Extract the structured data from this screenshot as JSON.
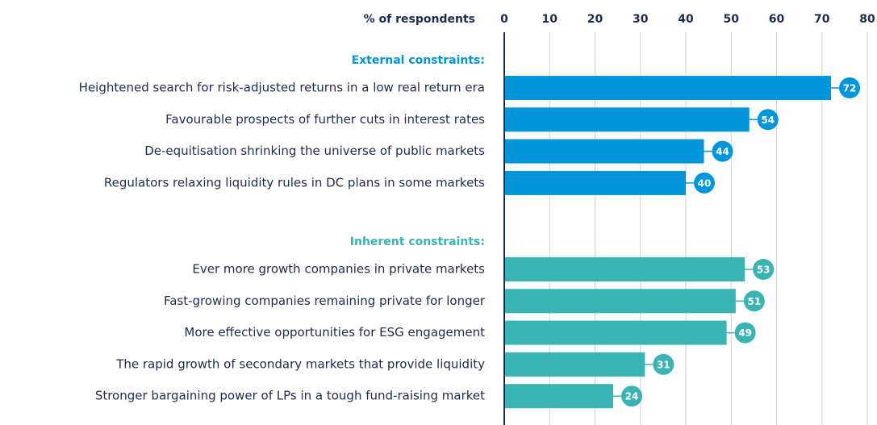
{
  "chart_data": {
    "type": "bar",
    "orientation": "horizontal",
    "axis_label": "% of respondents",
    "xlim": [
      0,
      80
    ],
    "xticks": [
      0,
      10,
      20,
      30,
      40,
      50,
      60,
      70,
      80
    ],
    "grid": true,
    "groups": [
      {
        "name": "External constraints:",
        "color": "#0096db",
        "categories": [
          "Heightened search for risk-adjusted returns in a low real return era",
          "Favourable prospects of further cuts in interest rates",
          "De-equitisation shrinking the universe of public markets",
          "Regulators relaxing liquidity rules in DC plans in some markets"
        ],
        "values": [
          72,
          54,
          44,
          40
        ]
      },
      {
        "name": "Inherent constraints:",
        "color": "#3ab3b3",
        "categories": [
          "Ever more growth companies in private markets",
          "Fast-growing companies remaining private for longer",
          "More effective opportunities for ESG engagement",
          "The rapid growth of secondary markets that provide liquidity",
          "Stronger bargaining power of LPs in a tough fund-raising market"
        ],
        "values": [
          53,
          51,
          49,
          31,
          24
        ]
      }
    ]
  }
}
